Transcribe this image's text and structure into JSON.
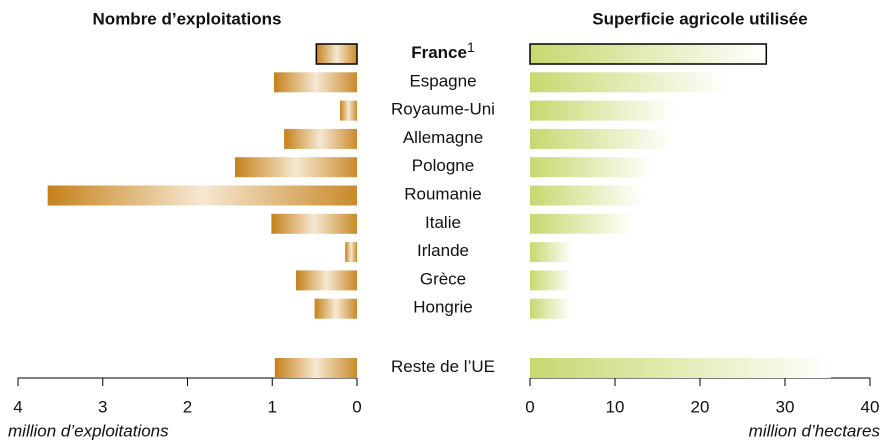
{
  "chart_data": {
    "type": "butterfly",
    "categories": [
      "France",
      "Espagne",
      "Royaume-Uni",
      "Allemagne",
      "Pologne",
      "Roumanie",
      "Italie",
      "Irlande",
      "Grèce",
      "Hongrie",
      "Reste de l’UE"
    ],
    "footnote_marker": "1",
    "highlight": "France",
    "left": {
      "title": "Nombre d’exploitations",
      "xlabel": "million d’exploitations",
      "xlim": [
        4,
        0
      ],
      "xticks": [
        4,
        3,
        2,
        1,
        0
      ],
      "values": [
        0.48,
        0.98,
        0.2,
        0.86,
        1.44,
        3.65,
        1.01,
        0.14,
        0.72,
        0.5,
        0.97
      ],
      "colors": [
        "#c5811a",
        "#f6e8d2",
        "#c98a2a"
      ]
    },
    "right": {
      "title": "Superficie agricole utilisée",
      "xlabel": "million d’hectares",
      "xlim": [
        0,
        40
      ],
      "xticks": [
        0,
        10,
        20,
        30,
        40
      ],
      "values": [
        27.8,
        23.2,
        17.2,
        16.8,
        14.5,
        13.3,
        12.2,
        5.0,
        5.0,
        4.8,
        35.4
      ],
      "colors": [
        "#c8d86f",
        "#ffffff"
      ]
    }
  }
}
